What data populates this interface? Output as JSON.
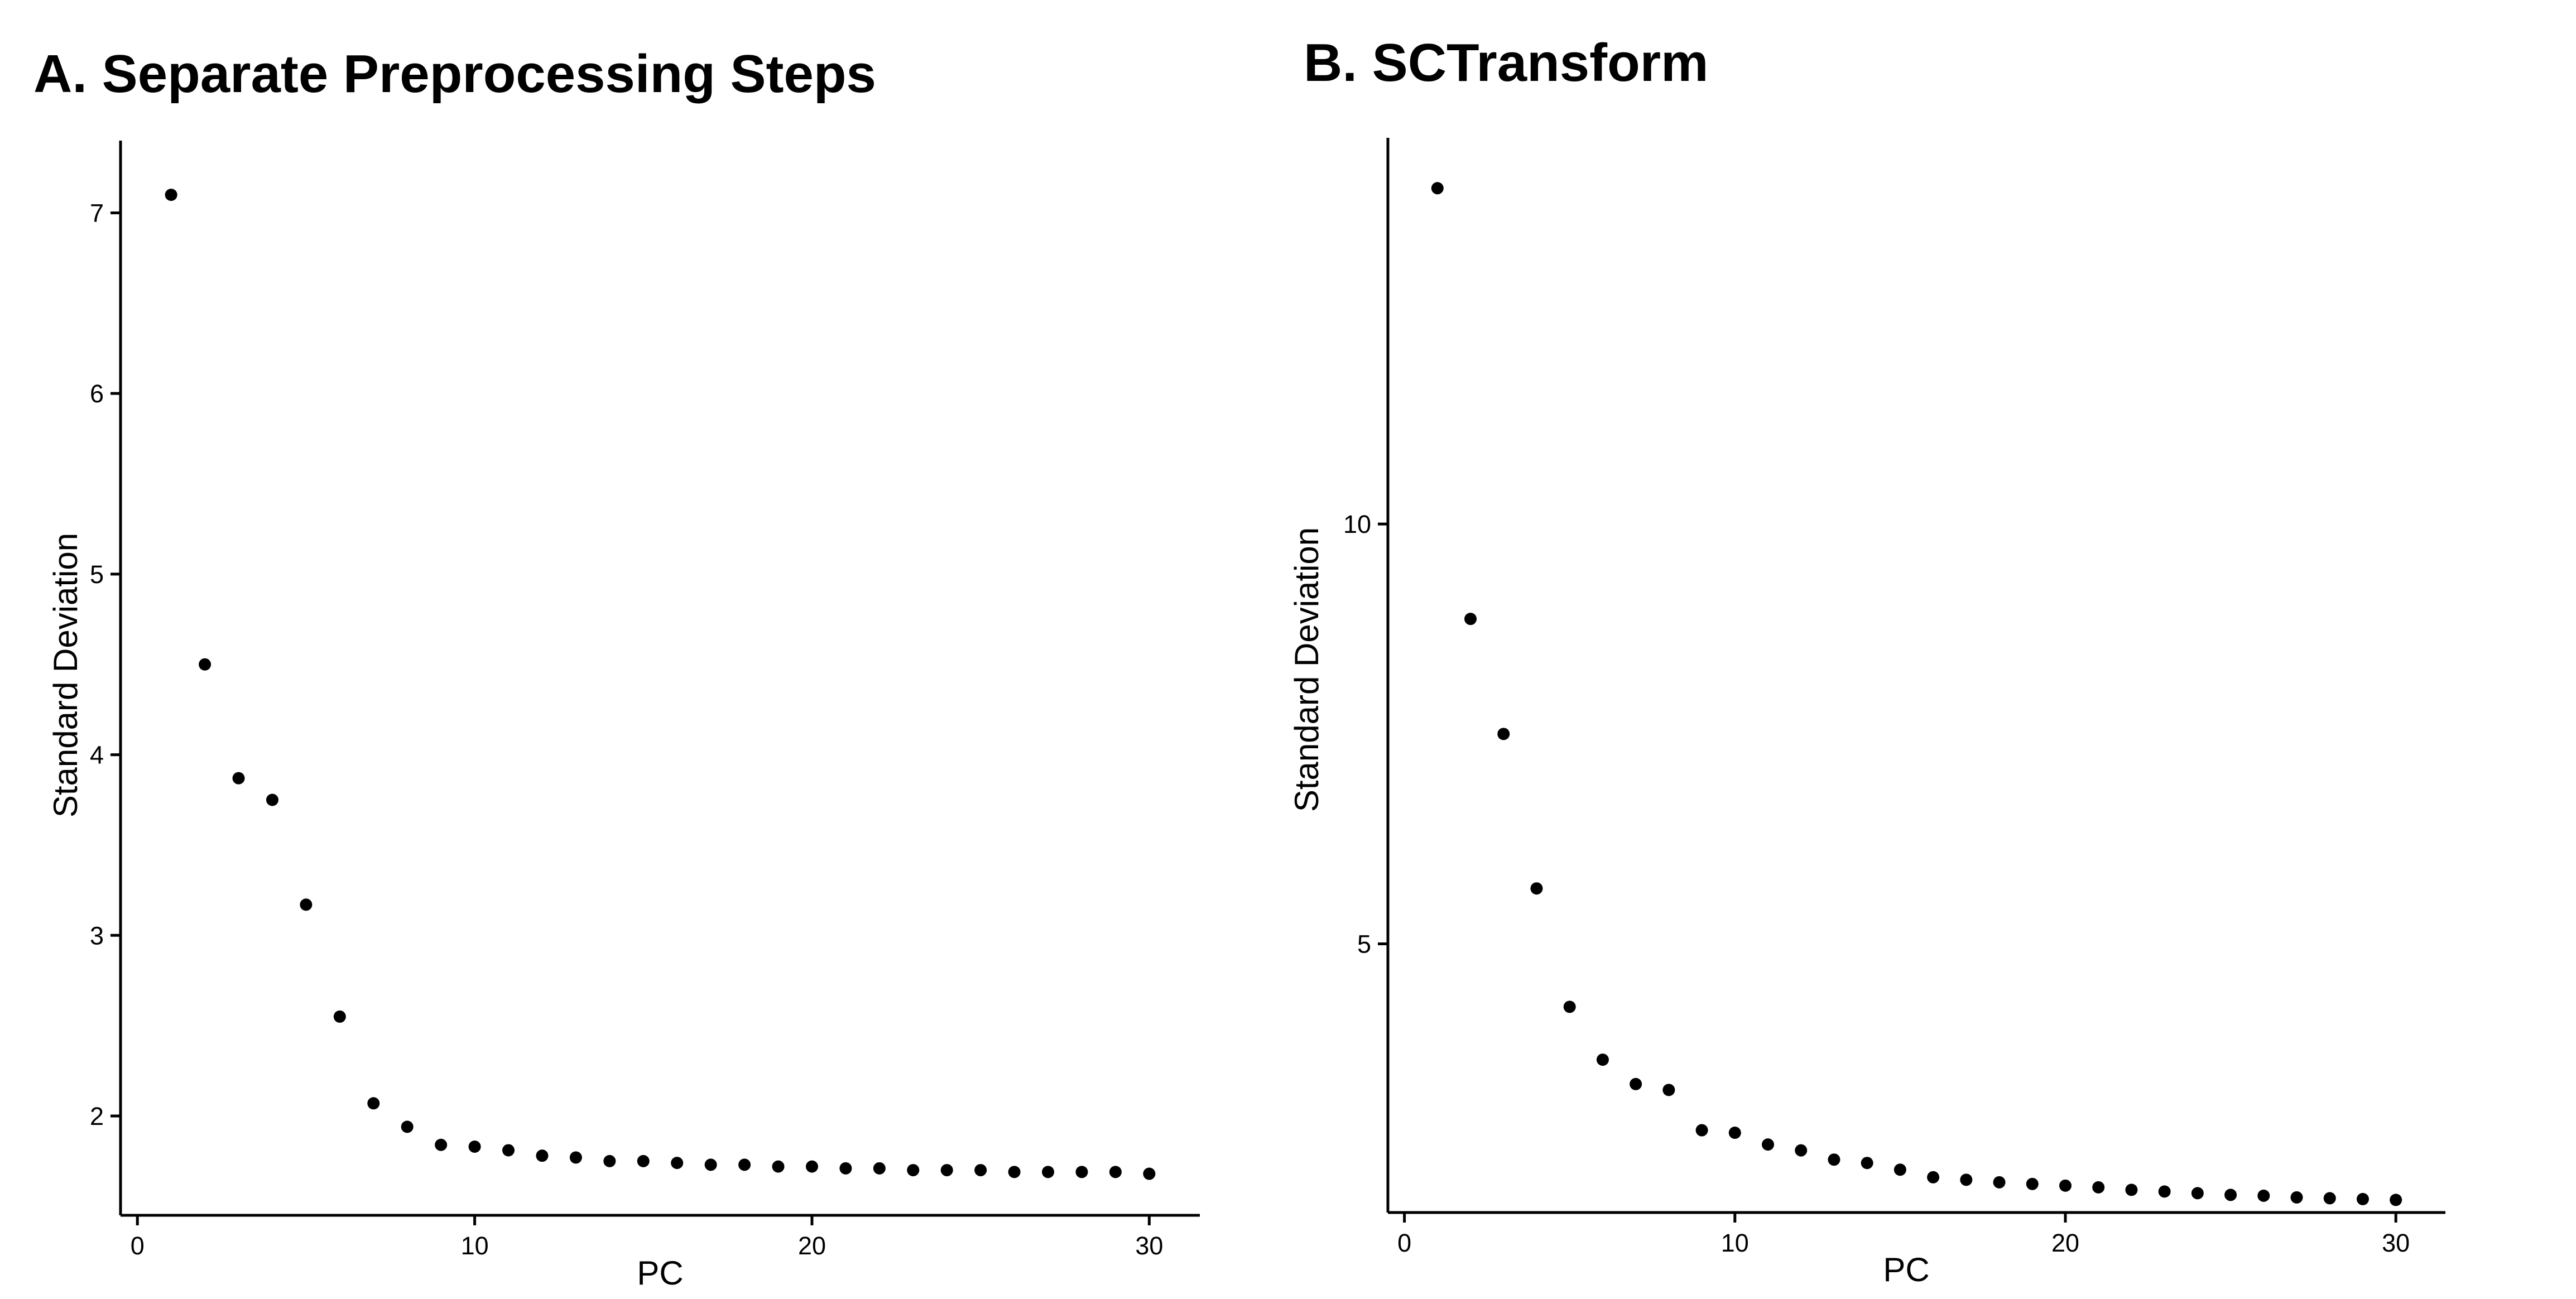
{
  "chart_data": [
    {
      "type": "scatter",
      "title": "A. Separate Preprocessing Steps",
      "xlabel": "PC",
      "ylabel": "Standard Deviation",
      "xlim": [
        -0.5,
        31.5
      ],
      "ylim": [
        1.45,
        7.4
      ],
      "xticks": [
        0,
        10,
        20,
        30
      ],
      "yticks": [
        2,
        3,
        4,
        5,
        6,
        7
      ],
      "grid": false,
      "x": [
        1,
        2,
        3,
        4,
        5,
        6,
        7,
        8,
        9,
        10,
        11,
        12,
        13,
        14,
        15,
        16,
        17,
        18,
        19,
        20,
        21,
        22,
        23,
        24,
        25,
        26,
        27,
        28,
        29,
        30
      ],
      "y": [
        7.1,
        4.5,
        3.87,
        3.75,
        3.17,
        2.55,
        2.07,
        1.94,
        1.84,
        1.83,
        1.81,
        1.78,
        1.77,
        1.75,
        1.75,
        1.74,
        1.73,
        1.73,
        1.72,
        1.72,
        1.71,
        1.71,
        1.7,
        1.7,
        1.7,
        1.69,
        1.69,
        1.69,
        1.69,
        1.68
      ]
    },
    {
      "type": "scatter",
      "title": "B. SCTransform",
      "xlabel": "PC",
      "ylabel": "Standard Deviation",
      "xlim": [
        -0.5,
        31.5
      ],
      "ylim": [
        1.8,
        14.6
      ],
      "xticks": [
        0,
        10,
        20,
        30
      ],
      "yticks": [
        5,
        10
      ],
      "grid": false,
      "x": [
        1,
        2,
        3,
        4,
        5,
        6,
        7,
        8,
        9,
        10,
        11,
        12,
        13,
        14,
        15,
        16,
        17,
        18,
        19,
        20,
        21,
        22,
        23,
        24,
        25,
        26,
        27,
        28,
        29,
        30
      ],
      "y": [
        14.0,
        8.87,
        7.5,
        5.66,
        4.25,
        3.62,
        3.33,
        3.26,
        2.78,
        2.75,
        2.61,
        2.54,
        2.43,
        2.39,
        2.31,
        2.22,
        2.19,
        2.16,
        2.14,
        2.12,
        2.1,
        2.07,
        2.05,
        2.03,
        2.01,
        2.0,
        1.98,
        1.97,
        1.96,
        1.95
      ]
    }
  ]
}
